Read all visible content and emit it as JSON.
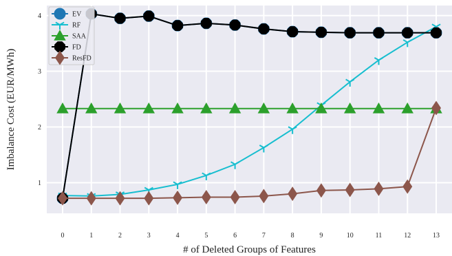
{
  "chart_data": {
    "type": "line",
    "xlabel": "# of Deleted Groups of Features",
    "ylabel": "Imbalance Cost (EUR/MWh)",
    "x": [
      0,
      1,
      2,
      3,
      4,
      5,
      6,
      7,
      8,
      9,
      10,
      11,
      12,
      13
    ],
    "xlim": [
      -0.55,
      13.55
    ],
    "ylim": [
      0.45,
      4.18
    ],
    "yticks": [
      1,
      2,
      3,
      4
    ],
    "grid": true,
    "background": "#eaeaf2",
    "legend_position": "top-left",
    "series": [
      {
        "name": "EV",
        "color": "#1f77b4",
        "marker": "circle",
        "values": [
          0.72,
          4.03,
          3.95,
          3.99,
          3.82,
          3.86,
          3.83,
          3.76,
          3.71,
          3.7,
          3.69,
          3.69,
          3.69,
          3.69
        ]
      },
      {
        "name": "RF",
        "color": "#17becf",
        "marker": "tri_down",
        "values": [
          0.77,
          0.76,
          0.79,
          0.87,
          0.97,
          1.13,
          1.33,
          1.63,
          1.96,
          2.39,
          2.81,
          3.2,
          3.52,
          3.8
        ]
      },
      {
        "name": "SAA",
        "color": "#2ca02c",
        "marker": "triangle",
        "values": [
          2.33,
          2.33,
          2.33,
          2.33,
          2.33,
          2.33,
          2.33,
          2.33,
          2.33,
          2.33,
          2.33,
          2.33,
          2.33,
          2.33
        ]
      },
      {
        "name": "FD",
        "color": "#000000",
        "marker": "octagon",
        "values": [
          0.72,
          4.03,
          3.95,
          3.99,
          3.82,
          3.86,
          3.83,
          3.76,
          3.71,
          3.7,
          3.69,
          3.69,
          3.69,
          3.69
        ]
      },
      {
        "name": "ResFD",
        "color": "#8c564b",
        "marker": "diamond",
        "values": [
          0.72,
          0.72,
          0.72,
          0.72,
          0.73,
          0.74,
          0.74,
          0.76,
          0.8,
          0.86,
          0.87,
          0.89,
          0.93,
          2.34
        ]
      }
    ]
  }
}
